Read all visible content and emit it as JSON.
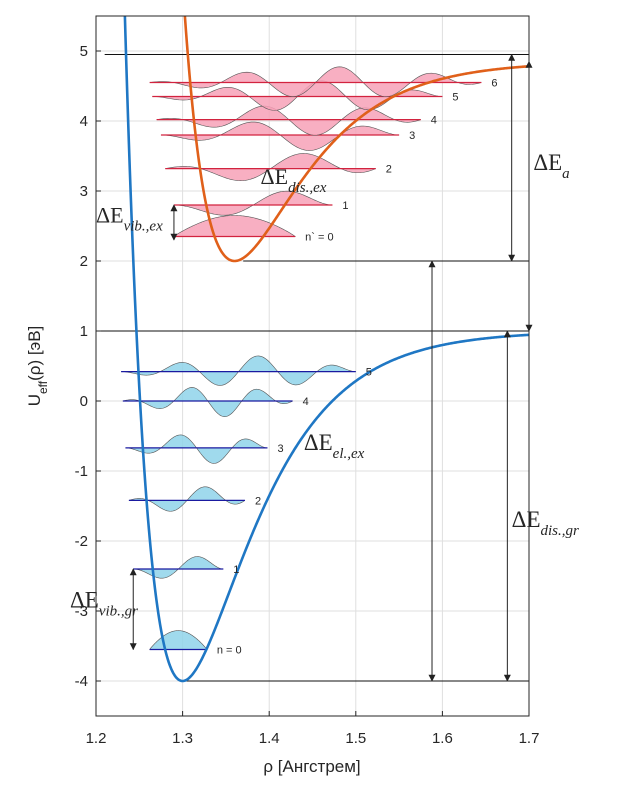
{
  "chart_data": {
    "type": "line",
    "xlabel": "ρ [Ангстрем]",
    "ylabel": {
      "base": "U",
      "sub": "eff",
      "rest": "(ρ) [эВ]"
    },
    "xlim": [
      1.2,
      1.7
    ],
    "ylim": [
      -4.5,
      5.5
    ],
    "xticks": [
      "1.2",
      "1.3",
      "1.4",
      "1.5",
      "1.6",
      "1.7"
    ],
    "yticks": [
      "-4",
      "-3",
      "-2",
      "-1",
      "0",
      "1",
      "2",
      "3",
      "4",
      "5"
    ],
    "grid": true,
    "series": [
      {
        "color": "#1f77c4",
        "De": 5.0,
        "re": 1.3,
        "a": 13.0,
        "min": -4,
        "asymptote": 1
      },
      {
        "color": "#e0601a",
        "De": 2.85,
        "re": 1.36,
        "a": 13.0,
        "min": 2,
        "asymptote": 4.85
      }
    ],
    "ground_levels": [
      {
        "label": "n = 0",
        "y": -3.55,
        "x_left": 1.262,
        "x_right": 1.328,
        "amp": 0.27
      },
      {
        "label": "1",
        "y": -2.4,
        "x_left": 1.243,
        "x_right": 1.347,
        "amp": 0.27
      },
      {
        "label": "2",
        "y": -1.42,
        "x_left": 1.238,
        "x_right": 1.372,
        "amp": 0.27
      },
      {
        "label": "3",
        "y": -0.67,
        "x_left": 1.234,
        "x_right": 1.398,
        "amp": 0.3
      },
      {
        "label": "4",
        "y": 0.0,
        "x_left": 1.231,
        "x_right": 1.427,
        "amp": 0.3
      },
      {
        "label": "5",
        "y": 0.42,
        "x_left": 1.229,
        "x_right": 1.5,
        "amp": 0.3
      }
    ],
    "excited_levels": [
      {
        "label": "n` = 0",
        "y": 2.35,
        "x_left": 1.29,
        "x_right": 1.43,
        "amp": 0.3
      },
      {
        "label": "1",
        "y": 2.8,
        "x_left": 1.29,
        "x_right": 1.473,
        "amp": 0.3
      },
      {
        "label": "2",
        "y": 3.32,
        "x_left": 1.28,
        "x_right": 1.523,
        "amp": 0.3
      },
      {
        "label": "3",
        "y": 3.8,
        "x_left": 1.275,
        "x_right": 1.55,
        "amp": 0.3
      },
      {
        "label": "4",
        "y": 4.02,
        "x_left": 1.27,
        "x_right": 1.575,
        "amp": 0.3
      },
      {
        "label": "5",
        "y": 4.35,
        "x_left": 1.265,
        "x_right": 1.6,
        "amp": 0.3
      },
      {
        "label": "6",
        "y": 4.55,
        "x_left": 1.262,
        "x_right": 1.645,
        "amp": 0.3
      }
    ],
    "hlines": [
      {
        "y": 4.95,
        "x_from": 1.21,
        "x_to": 1.7
      },
      {
        "y": 2.0,
        "x_from": 1.37,
        "x_to": 1.7
      },
      {
        "y": 1.0,
        "x_from": 1.2,
        "x_to": 1.7
      },
      {
        "y": -4.0,
        "x_from": 1.3,
        "x_to": 1.7
      }
    ],
    "annotations": [
      {
        "text": "ΔE",
        "sub": "dis.,ex",
        "style": "math-ex",
        "arrow": {
          "x": 1.68,
          "y1": 2.0,
          "y2": 4.95
        },
        "label_x": 1.39,
        "label_y": 3.1
      },
      {
        "text": "ΔE",
        "sub": "a",
        "style": "math",
        "arrow": {
          "x": 1.7,
          "y1": 1.0,
          "y2": 4.85
        },
        "label_x": 1.705,
        "label_y": 3.3
      },
      {
        "text": "ΔE",
        "sub": "vib.,ex",
        "style": "math-ex",
        "arrow": {
          "x": 1.29,
          "y1": 2.3,
          "y2": 2.8
        },
        "label_x": 1.2,
        "label_y": 2.55
      },
      {
        "text": "ΔE",
        "sub": "el.,ex",
        "style": "math",
        "arrow": {
          "x": 1.588,
          "y1": -4.0,
          "y2": 2.0
        },
        "label_x": 1.44,
        "label_y": -0.7
      },
      {
        "text": "ΔE",
        "sub": "dis.,gr",
        "style": "math",
        "arrow": {
          "x": 1.675,
          "y1": -4.0,
          "y2": 1.0
        },
        "label_x": 1.68,
        "label_y": -1.8
      },
      {
        "text": "ΔE",
        "sub": "vib.,gr",
        "style": "math",
        "arrow": {
          "x": 1.243,
          "y1": -3.55,
          "y2": -2.4
        },
        "label_x": 1.17,
        "label_y": -2.95
      }
    ],
    "colors": {
      "ground_fill": "#8fd3ea",
      "ground_line": "#1a1aa0",
      "excited_fill": "#f7a1b7",
      "excited_line": "#d2233f"
    }
  }
}
